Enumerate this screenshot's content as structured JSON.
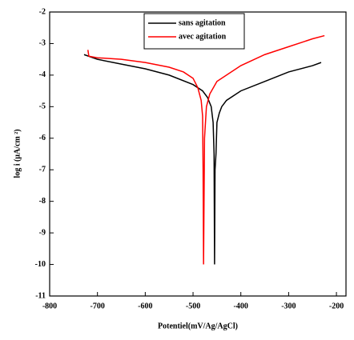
{
  "chart_data": {
    "type": "line",
    "x_label": "Potentiel(mV/Ag/AgCl)",
    "y_label": "log i (μA/cm ²)",
    "xlim": [
      -800,
      -180
    ],
    "xticks": [
      -800,
      -700,
      -600,
      -500,
      -400,
      -300,
      -200
    ],
    "ylim": [
      -11,
      -2
    ],
    "yticks": [
      -11,
      -10,
      -9,
      -8,
      -7,
      -6,
      -5,
      -4,
      -3,
      -2
    ],
    "legend": "upper center",
    "series": [
      {
        "name": "sans agitation",
        "color": "#000000",
        "x": [
          -728,
          -700,
          -650,
          -600,
          -550,
          -500,
          -480,
          -470,
          -462,
          -458,
          -456,
          -455,
          -454,
          -452,
          -450,
          -445,
          -440,
          -430,
          -400,
          -350,
          -300,
          -250,
          -232
        ],
        "values": [
          -3.35,
          -3.5,
          -3.65,
          -3.8,
          -4.0,
          -4.3,
          -4.5,
          -4.7,
          -5.0,
          -5.5,
          -6.5,
          -10,
          -7,
          -6.5,
          -5.5,
          -5.2,
          -5.0,
          -4.8,
          -4.5,
          -4.2,
          -3.9,
          -3.7,
          -3.6
        ]
      },
      {
        "name": "avec agitation",
        "color": "#ff0000",
        "x": [
          -720,
          -718,
          -700,
          -650,
          -600,
          -550,
          -520,
          -500,
          -490,
          -483,
          -480,
          -479,
          -478,
          -476,
          -472,
          -465,
          -450,
          -400,
          -350,
          -300,
          -250,
          -225
        ],
        "values": [
          -3.2,
          -3.4,
          -3.45,
          -3.5,
          -3.6,
          -3.75,
          -3.9,
          -4.1,
          -4.4,
          -4.8,
          -5.3,
          -7.0,
          -10,
          -6,
          -5.0,
          -4.6,
          -4.2,
          -3.7,
          -3.35,
          -3.1,
          -2.85,
          -2.75
        ]
      }
    ]
  }
}
